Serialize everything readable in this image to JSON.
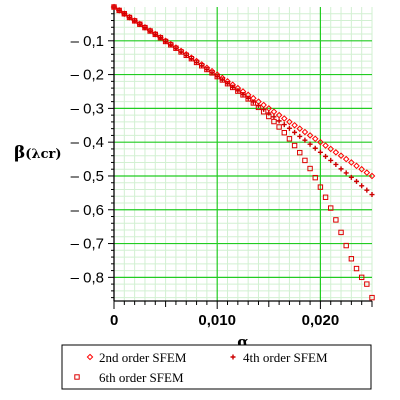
{
  "chart_data": {
    "type": "scatter",
    "xlabel": "α",
    "ylabel_main": "β",
    "ylabel_sub": "(λcr)",
    "xlim": [
      0,
      0.025
    ],
    "ylim": [
      -0.87,
      0
    ],
    "x_ticks": [
      {
        "value": 0,
        "label": "0"
      },
      {
        "value": 0.01,
        "label": "0,010"
      },
      {
        "value": 0.02,
        "label": "0,020"
      }
    ],
    "y_ticks": [
      {
        "value": -0.1,
        "label": "– 0,1"
      },
      {
        "value": -0.2,
        "label": "– 0,2"
      },
      {
        "value": -0.3,
        "label": "– 0,3"
      },
      {
        "value": -0.4,
        "label": "– 0,4"
      },
      {
        "value": -0.5,
        "label": "– 0,5"
      },
      {
        "value": -0.6,
        "label": "– 0,6"
      },
      {
        "value": -0.7,
        "label": "– 0,7"
      },
      {
        "value": -0.8,
        "label": "– 0,8"
      }
    ],
    "grid": true,
    "legend_position": "bottom",
    "series": [
      {
        "name": "2nd order SFEM",
        "marker": "diamond",
        "color": "#ff0000",
        "x": [
          0,
          0.0005,
          0.001,
          0.0015,
          0.002,
          0.0025,
          0.003,
          0.0035,
          0.004,
          0.0045,
          0.005,
          0.0055,
          0.006,
          0.0065,
          0.007,
          0.0075,
          0.008,
          0.0085,
          0.009,
          0.0095,
          0.01,
          0.0105,
          0.011,
          0.0115,
          0.012,
          0.0125,
          0.013,
          0.0135,
          0.014,
          0.0145,
          0.015,
          0.0155,
          0.016,
          0.0165,
          0.017,
          0.0175,
          0.018,
          0.0185,
          0.019,
          0.0195,
          0.02,
          0.0205,
          0.021,
          0.0215,
          0.022,
          0.0225,
          0.023,
          0.0235,
          0.024,
          0.0245,
          0.025
        ],
        "y": [
          0,
          -0.01,
          -0.02,
          -0.03,
          -0.04,
          -0.05,
          -0.06,
          -0.07,
          -0.08,
          -0.09,
          -0.1,
          -0.11,
          -0.12,
          -0.13,
          -0.14,
          -0.15,
          -0.16,
          -0.17,
          -0.18,
          -0.19,
          -0.2,
          -0.21,
          -0.22,
          -0.23,
          -0.24,
          -0.25,
          -0.26,
          -0.27,
          -0.28,
          -0.29,
          -0.3,
          -0.31,
          -0.32,
          -0.33,
          -0.34,
          -0.35,
          -0.36,
          -0.37,
          -0.38,
          -0.39,
          -0.4,
          -0.41,
          -0.42,
          -0.43,
          -0.44,
          -0.45,
          -0.46,
          -0.47,
          -0.48,
          -0.49,
          -0.5
        ]
      },
      {
        "name": "4th order SFEM",
        "marker": "plus",
        "color": "#cc0000",
        "x": [
          0,
          0.0005,
          0.001,
          0.0015,
          0.002,
          0.0025,
          0.003,
          0.0035,
          0.004,
          0.0045,
          0.005,
          0.0055,
          0.006,
          0.0065,
          0.007,
          0.0075,
          0.008,
          0.0085,
          0.009,
          0.0095,
          0.01,
          0.0105,
          0.011,
          0.0115,
          0.012,
          0.0125,
          0.013,
          0.0135,
          0.014,
          0.0145,
          0.015,
          0.0155,
          0.016,
          0.0165,
          0.017,
          0.0175,
          0.018,
          0.0185,
          0.019,
          0.0195,
          0.02,
          0.0205,
          0.021,
          0.0215,
          0.022,
          0.0225,
          0.023,
          0.0235,
          0.024,
          0.0245,
          0.025
        ],
        "y": [
          0,
          -0.01,
          -0.02,
          -0.031,
          -0.041,
          -0.051,
          -0.061,
          -0.071,
          -0.081,
          -0.091,
          -0.102,
          -0.112,
          -0.122,
          -0.133,
          -0.143,
          -0.153,
          -0.164,
          -0.174,
          -0.185,
          -0.195,
          -0.206,
          -0.216,
          -0.227,
          -0.238,
          -0.248,
          -0.259,
          -0.27,
          -0.281,
          -0.292,
          -0.303,
          -0.314,
          -0.325,
          -0.337,
          -0.348,
          -0.359,
          -0.371,
          -0.383,
          -0.394,
          -0.406,
          -0.418,
          -0.43,
          -0.442,
          -0.454,
          -0.466,
          -0.479,
          -0.491,
          -0.504,
          -0.516,
          -0.529,
          -0.542,
          -0.555
        ]
      },
      {
        "name": "6th order SFEM",
        "marker": "square",
        "color": "#dd0000",
        "x": [
          0,
          0.0005,
          0.001,
          0.0015,
          0.002,
          0.0025,
          0.003,
          0.0035,
          0.004,
          0.0045,
          0.005,
          0.0055,
          0.006,
          0.0065,
          0.007,
          0.0075,
          0.008,
          0.0085,
          0.009,
          0.0095,
          0.01,
          0.0105,
          0.011,
          0.0115,
          0.012,
          0.0125,
          0.013,
          0.0135,
          0.014,
          0.0145,
          0.015,
          0.0155,
          0.016,
          0.0165,
          0.017,
          0.0175,
          0.018,
          0.0185,
          0.019,
          0.0195,
          0.02,
          0.0205,
          0.021,
          0.0215,
          0.022,
          0.0225,
          0.023,
          0.0235,
          0.024,
          0.0245,
          0.025
        ],
        "y": [
          0,
          -0.01,
          -0.02,
          -0.031,
          -0.041,
          -0.051,
          -0.061,
          -0.071,
          -0.081,
          -0.091,
          -0.102,
          -0.112,
          -0.122,
          -0.133,
          -0.143,
          -0.153,
          -0.164,
          -0.174,
          -0.185,
          -0.195,
          -0.206,
          -0.216,
          -0.227,
          -0.238,
          -0.249,
          -0.26,
          -0.272,
          -0.284,
          -0.297,
          -0.31,
          -0.324,
          -0.339,
          -0.355,
          -0.372,
          -0.39,
          -0.41,
          -0.431,
          -0.454,
          -0.478,
          -0.505,
          -0.533,
          -0.563,
          -0.595,
          -0.63,
          -0.667,
          -0.706,
          -0.745,
          -0.774,
          -0.8,
          -0.82,
          -0.86
        ]
      }
    ]
  }
}
